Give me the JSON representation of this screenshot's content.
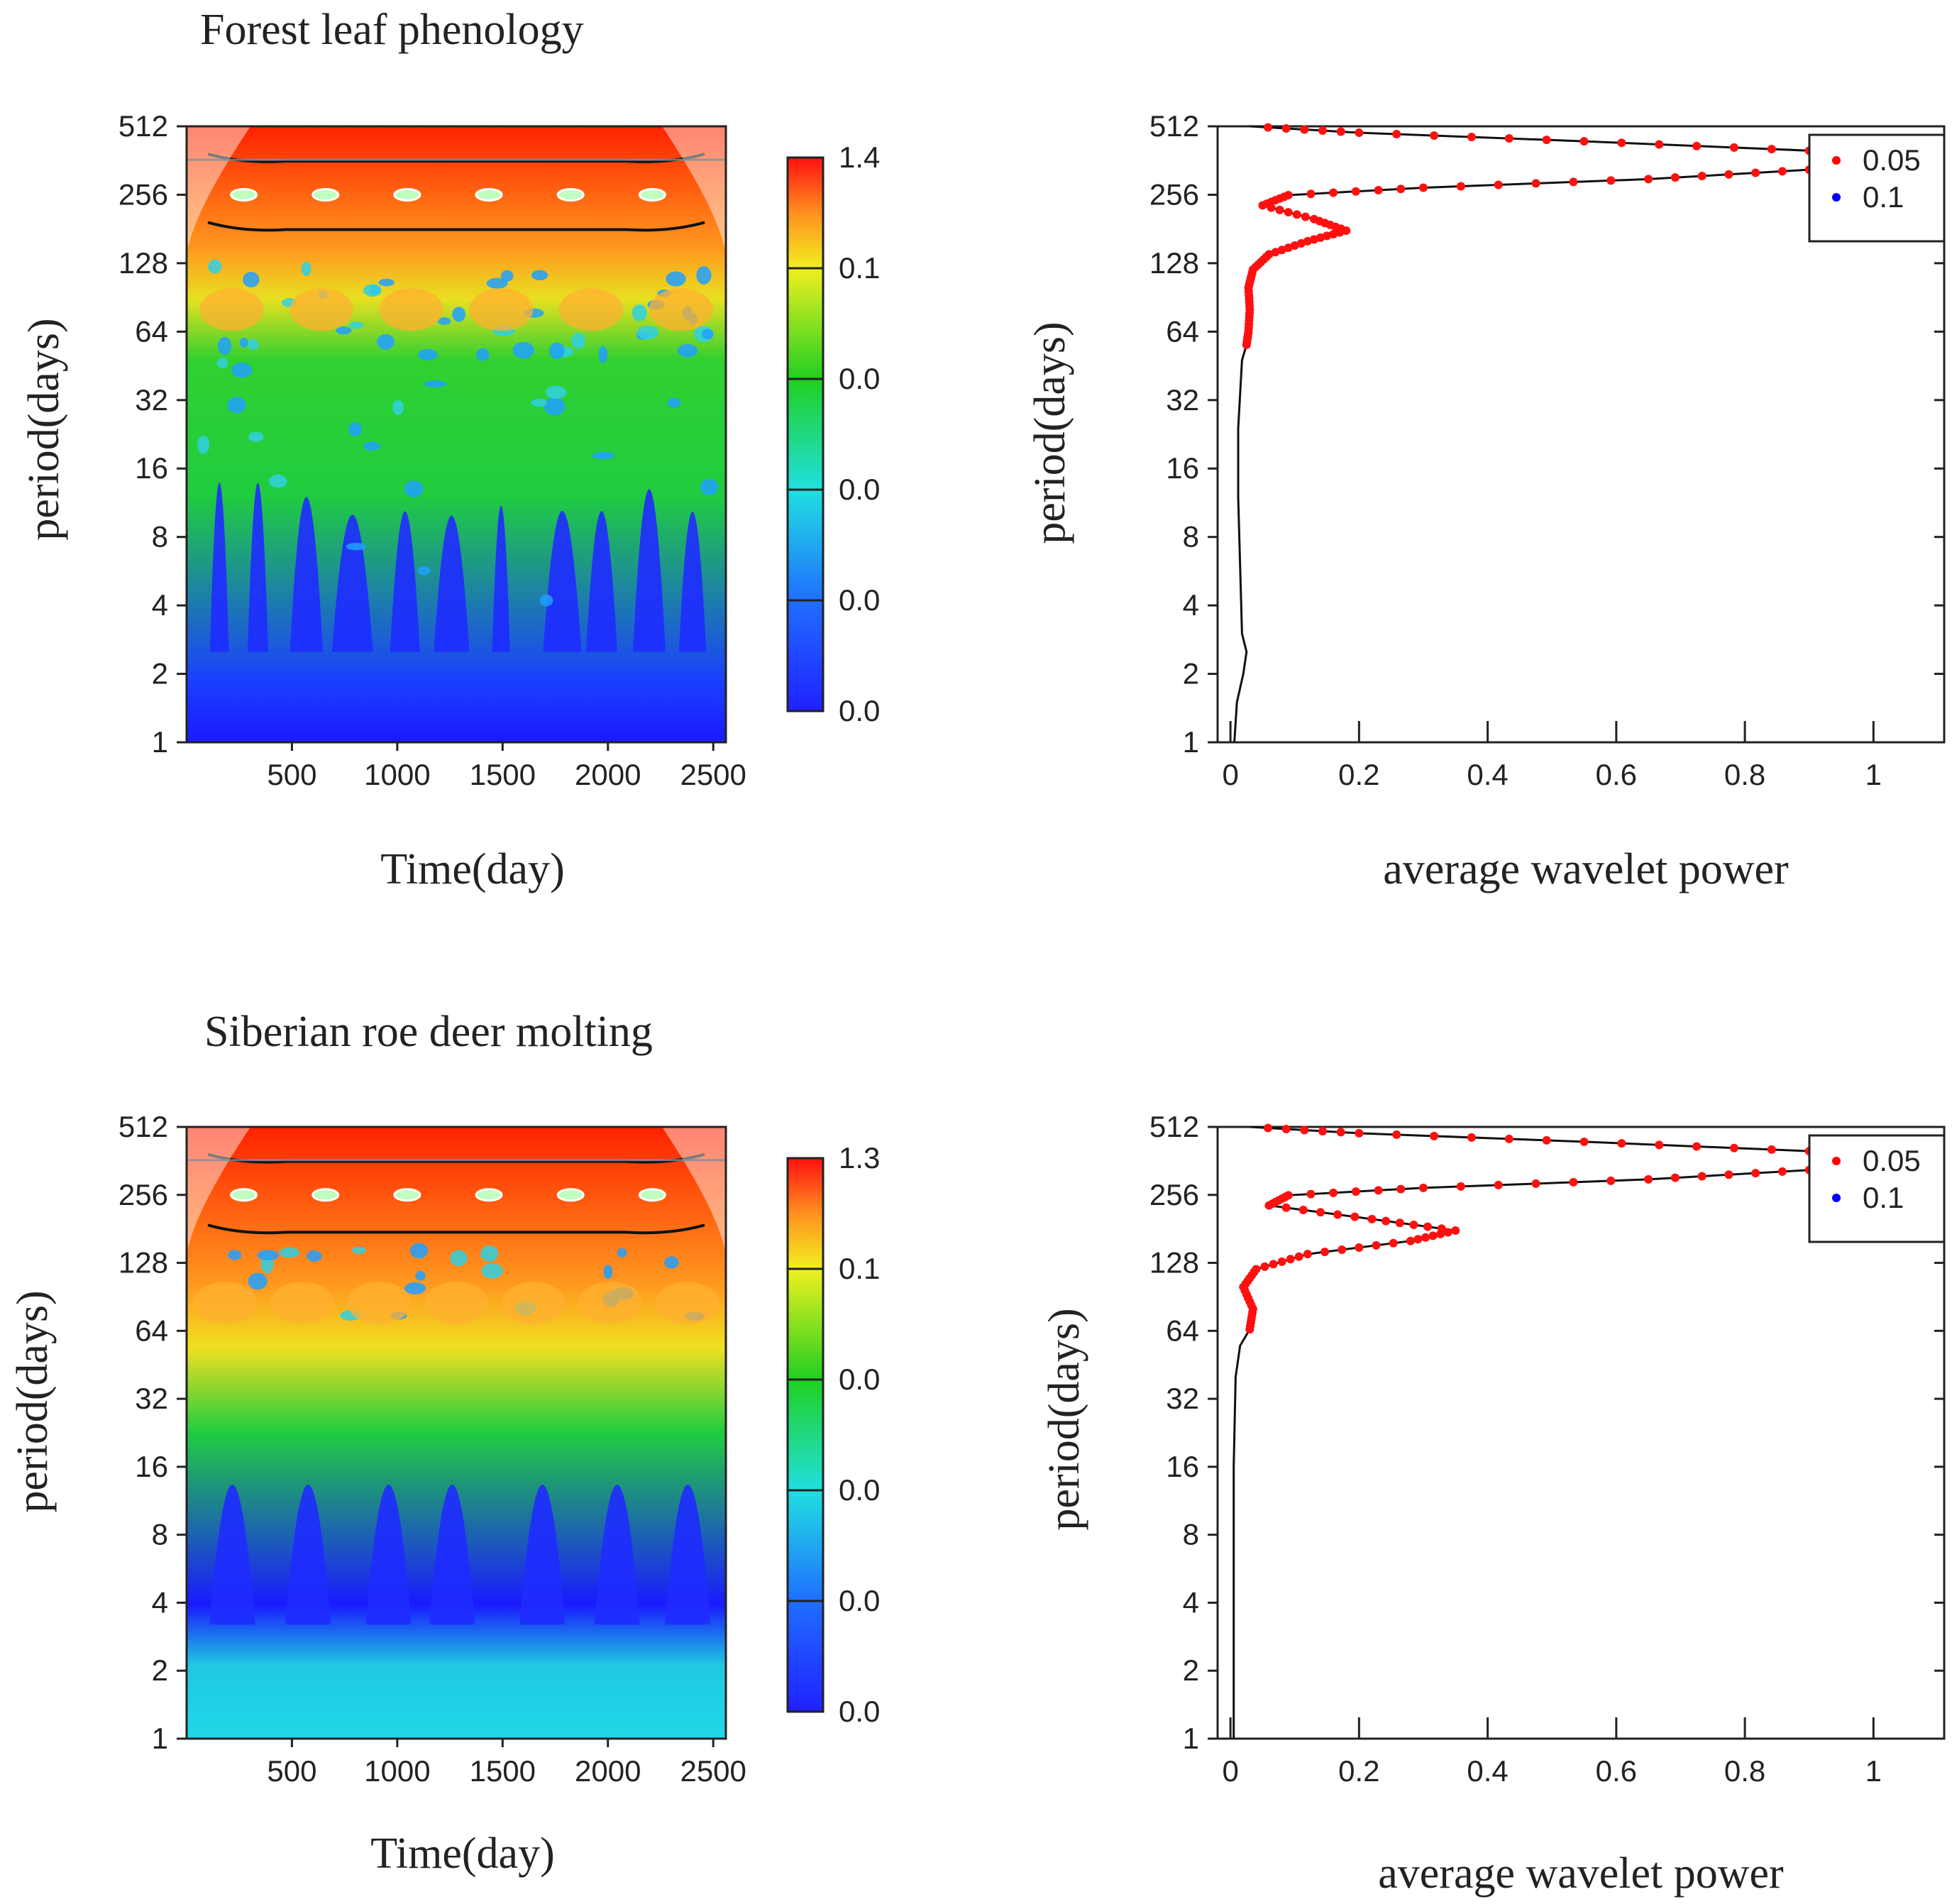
{
  "chart_data": [
    {
      "type": "heatmap",
      "name": "wavelet-power-forest",
      "title": "Forest leaf phenology",
      "xlabel": "Time(day)",
      "ylabel": "period(days)",
      "x_ticks": [
        500,
        1000,
        1500,
        2000,
        2500
      ],
      "x_range": [
        0,
        2560
      ],
      "y_ticks": [
        1,
        2,
        4,
        8,
        16,
        32,
        64,
        128,
        256,
        512
      ],
      "y_scale": "log2",
      "colorbar_labels": [
        "1.4",
        "0.1",
        "0.0",
        "0.0",
        "0.0",
        "0.0"
      ],
      "colors": {
        "low": "#1a1aff",
        "mid": "#22dd22",
        "high": "#ff2200"
      },
      "bands": [
        {
          "period_min": 1,
          "period_max": 2.5,
          "level": "low"
        },
        {
          "period_min": 2.5,
          "period_max": 60,
          "level": "low-mid streaks"
        },
        {
          "period_min": 60,
          "period_max": 160,
          "level": "mid-high"
        },
        {
          "period_min": 160,
          "period_max": 512,
          "level": "high"
        }
      ],
      "significance_contour_periods": [
        180,
        360
      ]
    },
    {
      "type": "line",
      "name": "average-power-forest",
      "xlabel": "average wavelet power",
      "ylabel": "period(days)",
      "x_ticks": [
        0,
        0.2,
        0.4,
        0.6,
        0.8,
        1
      ],
      "x_tick_labels": [
        "0",
        "0.2",
        "0.4",
        "0.6",
        "0.8",
        "1"
      ],
      "xlim": [
        -0.02,
        1.11
      ],
      "y_ticks": [
        1,
        2,
        4,
        8,
        16,
        32,
        64,
        128,
        256,
        512
      ],
      "y_scale": "log2",
      "legend": [
        {
          "label": "0.05",
          "color": "#ff0000"
        },
        {
          "label": "0.1",
          "color": "#0000ff"
        }
      ],
      "legend_position": "top-right",
      "series": [
        {
          "period": 1,
          "power": 0.006
        },
        {
          "period": 1.5,
          "power": 0.01
        },
        {
          "period": 2,
          "power": 0.02
        },
        {
          "period": 2.5,
          "power": 0.025
        },
        {
          "period": 3,
          "power": 0.018
        },
        {
          "period": 6,
          "power": 0.015
        },
        {
          "period": 12,
          "power": 0.012
        },
        {
          "period": 24,
          "power": 0.012
        },
        {
          "period": 48,
          "power": 0.018
        },
        {
          "period": 56,
          "power": 0.025
        },
        {
          "period": 64,
          "power": 0.028
        },
        {
          "period": 80,
          "power": 0.03
        },
        {
          "period": 100,
          "power": 0.028
        },
        {
          "period": 120,
          "power": 0.035
        },
        {
          "period": 140,
          "power": 0.06
        },
        {
          "period": 160,
          "power": 0.12
        },
        {
          "period": 178,
          "power": 0.18
        },
        {
          "period": 200,
          "power": 0.13
        },
        {
          "period": 230,
          "power": 0.05
        },
        {
          "period": 255,
          "power": 0.09
        },
        {
          "period": 275,
          "power": 0.3
        },
        {
          "period": 300,
          "power": 0.65
        },
        {
          "period": 330,
          "power": 0.9
        },
        {
          "period": 365,
          "power": 1.0
        },
        {
          "period": 400,
          "power": 0.9
        },
        {
          "period": 440,
          "power": 0.55
        },
        {
          "period": 480,
          "power": 0.2
        },
        {
          "period": 512,
          "power": 0.03
        }
      ],
      "significant_min_period": 55
    },
    {
      "type": "heatmap",
      "name": "wavelet-power-deer",
      "title": "Siberian roe deer molting",
      "xlabel": "Time(day)",
      "ylabel": "period(days)",
      "x_ticks": [
        500,
        1000,
        1500,
        2000,
        2500
      ],
      "x_range": [
        0,
        2560
      ],
      "y_ticks": [
        1,
        2,
        4,
        8,
        16,
        32,
        64,
        128,
        256,
        512
      ],
      "y_scale": "log2",
      "colorbar_labels": [
        "1.3",
        "0.1",
        "0.0",
        "0.0",
        "0.0",
        "0.0"
      ],
      "colors": {
        "low": "#1a1aff",
        "mid": "#22dd22",
        "high": "#ff2200"
      },
      "bands": [
        {
          "period_min": 1,
          "period_max": 3,
          "level": "low-cyan"
        },
        {
          "period_min": 3,
          "period_max": 50,
          "level": "low spikes"
        },
        {
          "period_min": 50,
          "period_max": 140,
          "level": "mid-high"
        },
        {
          "period_min": 140,
          "period_max": 512,
          "level": "high"
        }
      ],
      "significance_contour_periods": [
        175,
        360
      ]
    },
    {
      "type": "line",
      "name": "average-power-deer",
      "xlabel": "average wavelet power",
      "ylabel": "period(days)",
      "x_ticks": [
        0,
        0.2,
        0.4,
        0.6,
        0.8,
        1
      ],
      "x_tick_labels": [
        "0",
        "0.2",
        "0.4",
        "0.6",
        "0.8",
        "1"
      ],
      "xlim": [
        -0.02,
        1.11
      ],
      "y_ticks": [
        1,
        2,
        4,
        8,
        16,
        32,
        64,
        128,
        256,
        512
      ],
      "y_scale": "log2",
      "legend": [
        {
          "label": "0.05",
          "color": "#ff0000"
        },
        {
          "label": "0.1",
          "color": "#0000ff"
        }
      ],
      "legend_position": "top-right",
      "series": [
        {
          "period": 1,
          "power": 0.005
        },
        {
          "period": 4,
          "power": 0.005
        },
        {
          "period": 16,
          "power": 0.005
        },
        {
          "period": 40,
          "power": 0.008
        },
        {
          "period": 55,
          "power": 0.015
        },
        {
          "period": 65,
          "power": 0.03
        },
        {
          "period": 80,
          "power": 0.035
        },
        {
          "period": 100,
          "power": 0.02
        },
        {
          "period": 120,
          "power": 0.04
        },
        {
          "period": 140,
          "power": 0.12
        },
        {
          "period": 160,
          "power": 0.28
        },
        {
          "period": 178,
          "power": 0.35
        },
        {
          "period": 200,
          "power": 0.22
        },
        {
          "period": 230,
          "power": 0.06
        },
        {
          "period": 255,
          "power": 0.09
        },
        {
          "period": 275,
          "power": 0.3
        },
        {
          "period": 300,
          "power": 0.65
        },
        {
          "period": 330,
          "power": 0.9
        },
        {
          "period": 365,
          "power": 1.0
        },
        {
          "period": 400,
          "power": 0.9
        },
        {
          "period": 440,
          "power": 0.55
        },
        {
          "period": 480,
          "power": 0.2
        },
        {
          "period": 512,
          "power": 0.03
        }
      ],
      "significant_min_period": 65
    }
  ]
}
